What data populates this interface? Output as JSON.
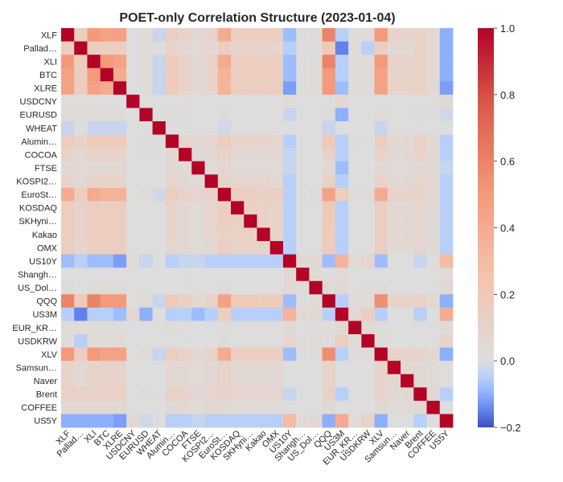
{
  "chart_data": {
    "type": "heatmap",
    "title": "POET-only Correlation Structure (2023-01-04)",
    "labels": [
      "XLF",
      "Pallad…",
      "XLI",
      "BTC",
      "XLRE",
      "USDCNY",
      "EURUSD",
      "WHEAT",
      "Alumin…",
      "COCOA",
      "FTSE",
      "KOSPI2…",
      "EuroSt…",
      "KOSDAQ",
      "SKHyni…",
      "Kakao",
      "OMX",
      "US10Y",
      "Shangh…",
      "US_Dol…",
      "QQQ",
      "US3M",
      "EUR_KR…",
      "USDKRW",
      "XLV",
      "Samsun…",
      "Naver",
      "Brent",
      "COFFEE",
      "US5Y"
    ],
    "colorbar": {
      "min": -0.2,
      "max": 1.0,
      "ticks": [
        1.0,
        0.8,
        0.6,
        0.4,
        0.2,
        0.0,
        -0.2
      ],
      "tick_labels": [
        "1.0",
        "0.8",
        "0.6",
        "0.4",
        "0.2",
        "0.0",
        "−0.2"
      ],
      "colormap": "coolwarm"
    },
    "grid": false,
    "values": [
      [
        1.0,
        0.15,
        0.5,
        0.45,
        0.45,
        0.0,
        0.02,
        -0.03,
        0.15,
        0.1,
        0.05,
        0.1,
        0.4,
        0.15,
        0.15,
        0.15,
        0.15,
        -0.08,
        0.0,
        0.03,
        0.6,
        -0.05,
        0.02,
        0.02,
        0.5,
        0.1,
        0.1,
        0.12,
        0.05,
        -0.1
      ],
      [
        0.15,
        1.0,
        0.15,
        0.15,
        0.15,
        0.0,
        0.02,
        0.0,
        0.1,
        0.05,
        0.03,
        0.05,
        0.15,
        0.1,
        0.1,
        0.1,
        0.08,
        -0.05,
        0.0,
        0.0,
        0.2,
        -0.15,
        0.02,
        -0.05,
        0.15,
        0.05,
        0.05,
        0.12,
        0.05,
        -0.1
      ],
      [
        0.5,
        0.15,
        1.0,
        0.5,
        0.45,
        0.0,
        0.02,
        -0.03,
        0.18,
        0.1,
        0.05,
        0.1,
        0.4,
        0.15,
        0.15,
        0.15,
        0.15,
        -0.08,
        0.0,
        0.03,
        0.6,
        -0.05,
        0.02,
        0.02,
        0.5,
        0.1,
        0.1,
        0.12,
        0.05,
        -0.1
      ],
      [
        0.45,
        0.15,
        0.5,
        1.0,
        0.4,
        0.0,
        0.02,
        -0.03,
        0.18,
        0.1,
        0.05,
        0.1,
        0.35,
        0.15,
        0.15,
        0.15,
        0.15,
        -0.08,
        0.0,
        0.03,
        0.5,
        -0.05,
        0.02,
        0.02,
        0.45,
        0.1,
        0.1,
        0.12,
        0.05,
        -0.1
      ],
      [
        0.45,
        0.15,
        0.45,
        0.4,
        1.0,
        0.0,
        0.02,
        -0.03,
        0.18,
        0.1,
        0.05,
        0.1,
        0.35,
        0.15,
        0.15,
        0.15,
        0.15,
        -0.12,
        0.0,
        0.03,
        0.5,
        -0.08,
        0.02,
        0.02,
        0.45,
        0.1,
        0.1,
        0.12,
        0.05,
        -0.12
      ],
      [
        0.0,
        0.0,
        0.0,
        0.0,
        0.0,
        1.0,
        0.0,
        0.0,
        0.0,
        0.0,
        0.0,
        0.0,
        0.0,
        0.0,
        0.0,
        0.0,
        0.0,
        0.03,
        0.0,
        0.0,
        0.0,
        0.05,
        0.0,
        0.0,
        0.0,
        0.0,
        0.0,
        0.0,
        0.0,
        0.05
      ],
      [
        0.02,
        0.02,
        0.02,
        0.02,
        0.02,
        0.0,
        1.0,
        0.0,
        0.02,
        0.02,
        0.0,
        0.0,
        0.02,
        0.0,
        0.0,
        0.0,
        0.0,
        -0.03,
        0.0,
        0.0,
        0.02,
        -0.1,
        0.0,
        0.0,
        0.02,
        0.0,
        0.0,
        0.02,
        0.0,
        -0.02
      ],
      [
        -0.03,
        0.0,
        -0.03,
        -0.03,
        -0.03,
        0.0,
        0.0,
        1.0,
        0.0,
        0.0,
        0.0,
        0.0,
        -0.02,
        0.0,
        0.0,
        0.0,
        0.0,
        0.0,
        0.0,
        0.0,
        -0.03,
        0.0,
        0.0,
        0.0,
        -0.03,
        0.0,
        0.0,
        0.0,
        0.0,
        0.0
      ],
      [
        0.15,
        0.1,
        0.18,
        0.18,
        0.18,
        0.0,
        0.02,
        0.0,
        1.0,
        0.08,
        0.05,
        0.08,
        0.15,
        0.1,
        0.1,
        0.1,
        0.08,
        -0.05,
        0.0,
        0.0,
        0.2,
        -0.05,
        0.02,
        0.0,
        0.15,
        0.05,
        0.05,
        0.12,
        0.05,
        -0.05
      ],
      [
        0.1,
        0.05,
        0.1,
        0.1,
        0.1,
        0.0,
        0.02,
        0.0,
        0.08,
        1.0,
        0.03,
        0.05,
        0.1,
        0.05,
        0.05,
        0.05,
        0.05,
        -0.03,
        0.0,
        0.0,
        0.12,
        -0.05,
        0.0,
        0.0,
        0.1,
        0.05,
        0.05,
        0.1,
        0.05,
        -0.05
      ],
      [
        0.05,
        0.03,
        0.05,
        0.05,
        0.05,
        0.0,
        0.0,
        0.0,
        0.05,
        0.03,
        1.0,
        0.03,
        0.08,
        0.03,
        0.03,
        0.03,
        0.03,
        -0.03,
        0.0,
        0.0,
        0.05,
        -0.08,
        0.0,
        0.0,
        0.05,
        0.03,
        0.03,
        0.05,
        0.03,
        -0.03
      ],
      [
        0.1,
        0.05,
        0.1,
        0.1,
        0.1,
        0.0,
        0.0,
        0.0,
        0.08,
        0.05,
        0.03,
        1.0,
        0.1,
        0.08,
        0.08,
        0.08,
        0.05,
        -0.05,
        0.0,
        0.0,
        0.12,
        -0.05,
        0.0,
        0.0,
        0.1,
        0.05,
        0.05,
        0.08,
        0.05,
        -0.05
      ],
      [
        0.4,
        0.15,
        0.4,
        0.35,
        0.35,
        0.0,
        0.02,
        -0.02,
        0.15,
        0.1,
        0.08,
        0.1,
        1.0,
        0.15,
        0.15,
        0.12,
        0.15,
        -0.05,
        0.0,
        0.03,
        0.45,
        0.15,
        0.02,
        0.02,
        0.4,
        0.1,
        0.1,
        0.1,
        0.05,
        -0.05
      ],
      [
        0.15,
        0.1,
        0.15,
        0.15,
        0.15,
        0.0,
        0.0,
        0.0,
        0.1,
        0.05,
        0.03,
        0.08,
        0.15,
        1.0,
        0.12,
        0.12,
        0.1,
        -0.05,
        0.0,
        0.0,
        0.2,
        -0.05,
        0.0,
        0.0,
        0.15,
        0.05,
        0.05,
        0.08,
        0.03,
        -0.05
      ],
      [
        0.15,
        0.1,
        0.15,
        0.15,
        0.15,
        0.0,
        0.0,
        0.0,
        0.1,
        0.05,
        0.03,
        0.08,
        0.15,
        0.12,
        1.0,
        0.12,
        0.1,
        -0.05,
        0.0,
        0.0,
        0.2,
        -0.05,
        0.0,
        0.0,
        0.15,
        0.05,
        0.05,
        0.08,
        0.03,
        -0.05
      ],
      [
        0.15,
        0.1,
        0.15,
        0.15,
        0.15,
        0.0,
        0.0,
        0.0,
        0.1,
        0.05,
        0.03,
        0.08,
        0.12,
        0.12,
        0.12,
        1.0,
        0.1,
        -0.05,
        0.0,
        0.0,
        0.18,
        -0.05,
        0.0,
        0.0,
        0.15,
        0.05,
        0.05,
        0.08,
        0.03,
        -0.05
      ],
      [
        0.15,
        0.08,
        0.15,
        0.15,
        0.15,
        0.0,
        0.0,
        0.0,
        0.08,
        0.05,
        0.03,
        0.05,
        0.15,
        0.1,
        0.1,
        0.1,
        1.0,
        -0.05,
        0.0,
        0.0,
        0.18,
        -0.05,
        0.0,
        0.0,
        0.15,
        0.05,
        0.05,
        0.08,
        0.03,
        -0.05
      ],
      [
        -0.08,
        -0.05,
        -0.08,
        -0.08,
        -0.12,
        0.03,
        -0.03,
        0.0,
        -0.05,
        -0.03,
        -0.03,
        -0.05,
        -0.05,
        -0.05,
        -0.05,
        -0.05,
        -0.05,
        1.0,
        0.05,
        0.05,
        -0.08,
        0.35,
        0.03,
        0.08,
        -0.08,
        0.0,
        0.0,
        -0.03,
        0.0,
        0.3
      ],
      [
        0.0,
        0.0,
        0.0,
        0.0,
        0.0,
        0.0,
        0.0,
        0.0,
        0.0,
        0.0,
        0.0,
        0.0,
        0.0,
        0.0,
        0.0,
        0.0,
        0.0,
        0.05,
        1.0,
        0.03,
        0.0,
        0.03,
        0.0,
        0.0,
        0.0,
        0.0,
        0.0,
        0.0,
        0.0,
        0.03
      ],
      [
        0.03,
        0.0,
        0.03,
        0.03,
        0.03,
        0.0,
        0.0,
        0.0,
        0.0,
        0.0,
        0.0,
        0.0,
        0.03,
        0.0,
        0.0,
        0.0,
        0.0,
        0.05,
        0.03,
        1.0,
        0.03,
        0.05,
        0.0,
        0.03,
        0.03,
        0.0,
        0.0,
        0.0,
        0.0,
        0.05
      ],
      [
        0.6,
        0.2,
        0.6,
        0.5,
        0.5,
        0.0,
        0.02,
        -0.03,
        0.2,
        0.12,
        0.05,
        0.12,
        0.45,
        0.2,
        0.2,
        0.18,
        0.18,
        -0.08,
        0.0,
        0.03,
        1.0,
        -0.05,
        0.02,
        0.02,
        0.55,
        0.1,
        0.1,
        0.12,
        0.05,
        -0.1
      ],
      [
        -0.05,
        -0.15,
        -0.05,
        -0.05,
        -0.08,
        0.05,
        -0.1,
        0.0,
        -0.05,
        -0.05,
        -0.08,
        -0.05,
        0.15,
        -0.05,
        -0.05,
        -0.05,
        -0.05,
        0.35,
        0.03,
        0.05,
        -0.05,
        1.0,
        0.05,
        0.15,
        -0.05,
        0.0,
        0.0,
        -0.05,
        0.0,
        0.4
      ],
      [
        0.02,
        0.02,
        0.02,
        0.02,
        0.02,
        0.0,
        0.0,
        0.0,
        0.02,
        0.0,
        0.0,
        0.0,
        0.02,
        0.0,
        0.0,
        0.0,
        0.0,
        0.03,
        0.0,
        0.0,
        0.02,
        0.05,
        1.0,
        0.03,
        0.02,
        0.0,
        0.0,
        0.0,
        0.0,
        0.03
      ],
      [
        0.02,
        -0.05,
        0.02,
        0.02,
        0.02,
        0.0,
        0.0,
        0.0,
        0.0,
        0.0,
        0.0,
        0.0,
        0.02,
        0.0,
        0.0,
        0.0,
        0.0,
        0.08,
        0.0,
        0.03,
        0.02,
        0.15,
        0.03,
        1.0,
        0.02,
        0.0,
        0.0,
        0.0,
        0.0,
        0.1
      ],
      [
        0.5,
        0.15,
        0.5,
        0.45,
        0.45,
        0.0,
        0.02,
        -0.03,
        0.15,
        0.1,
        0.05,
        0.1,
        0.4,
        0.15,
        0.15,
        0.15,
        0.15,
        -0.08,
        0.0,
        0.03,
        0.55,
        -0.05,
        0.02,
        0.02,
        1.0,
        0.1,
        0.1,
        0.1,
        0.05,
        -0.1
      ],
      [
        0.1,
        0.05,
        0.1,
        0.1,
        0.1,
        0.0,
        0.0,
        0.0,
        0.05,
        0.05,
        0.03,
        0.05,
        0.1,
        0.05,
        0.05,
        0.05,
        0.05,
        0.0,
        0.0,
        0.0,
        0.1,
        0.0,
        0.0,
        0.0,
        0.1,
        1.0,
        0.05,
        0.05,
        0.03,
        0.0
      ],
      [
        0.1,
        0.05,
        0.1,
        0.1,
        0.1,
        0.0,
        0.0,
        0.0,
        0.05,
        0.05,
        0.03,
        0.05,
        0.1,
        0.05,
        0.05,
        0.05,
        0.05,
        0.0,
        0.0,
        0.0,
        0.1,
        0.0,
        0.0,
        0.0,
        0.1,
        0.05,
        1.0,
        0.05,
        0.03,
        0.0
      ],
      [
        0.12,
        0.12,
        0.12,
        0.12,
        0.12,
        0.0,
        0.02,
        0.0,
        0.12,
        0.1,
        0.05,
        0.08,
        0.1,
        0.08,
        0.08,
        0.08,
        0.08,
        -0.03,
        0.0,
        0.0,
        0.12,
        -0.05,
        0.0,
        0.0,
        0.1,
        0.05,
        0.05,
        1.0,
        0.05,
        -0.05
      ],
      [
        0.05,
        0.05,
        0.05,
        0.05,
        0.05,
        0.0,
        0.0,
        0.0,
        0.05,
        0.05,
        0.03,
        0.05,
        0.05,
        0.03,
        0.03,
        0.03,
        0.03,
        0.0,
        0.0,
        0.0,
        0.05,
        0.0,
        0.0,
        0.0,
        0.05,
        0.03,
        0.03,
        0.05,
        1.0,
        0.0
      ],
      [
        -0.1,
        -0.1,
        -0.1,
        -0.1,
        -0.12,
        0.05,
        -0.02,
        0.0,
        -0.05,
        -0.05,
        -0.03,
        -0.05,
        -0.05,
        -0.05,
        -0.05,
        -0.05,
        -0.05,
        0.3,
        0.03,
        0.05,
        -0.1,
        0.4,
        0.03,
        0.1,
        -0.1,
        0.0,
        0.0,
        -0.05,
        0.0,
        1.0
      ]
    ]
  }
}
